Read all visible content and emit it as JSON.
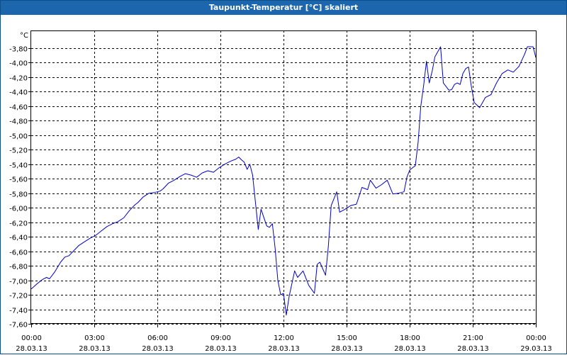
{
  "window": {
    "title": "Taupunkt-Temperatur [°C] skaliert"
  },
  "chart_data": {
    "type": "line",
    "title": "Taupunkt-Temperatur [°C] skaliert",
    "y_unit_label": "°C",
    "ylim": [
      -7.6,
      -3.6
    ],
    "y_ticks": [
      "-3,80",
      "-4,00",
      "-4,20",
      "-4,40",
      "-4,60",
      "-4,80",
      "-5,00",
      "-5,20",
      "-5,40",
      "-5,60",
      "-5,80",
      "-6,00",
      "-6,20",
      "-6,40",
      "-6,60",
      "-6,80",
      "-7,00",
      "-7,20",
      "-7,40",
      "-7,60"
    ],
    "y_tick_values": [
      -3.8,
      -4.0,
      -4.2,
      -4.4,
      -4.6,
      -4.8,
      -5.0,
      -5.2,
      -5.4,
      -5.6,
      -5.8,
      -6.0,
      -6.2,
      -6.4,
      -6.6,
      -6.8,
      -7.0,
      -7.2,
      -7.4,
      -7.6
    ],
    "xlim_hours": [
      0,
      24
    ],
    "x_ticks": [
      {
        "time": "00:00",
        "date": "28.03.13",
        "hour": 0
      },
      {
        "time": "03:00",
        "date": "28.03.13",
        "hour": 3
      },
      {
        "time": "06:00",
        "date": "28.03.13",
        "hour": 6
      },
      {
        "time": "09:00",
        "date": "28.03.13",
        "hour": 9
      },
      {
        "time": "12:00",
        "date": "28.03.13",
        "hour": 12
      },
      {
        "time": "15:00",
        "date": "28.03.13",
        "hour": 15
      },
      {
        "time": "18:00",
        "date": "28.03.13",
        "hour": 18
      },
      {
        "time": "21:00",
        "date": "28.03.13",
        "hour": 21
      },
      {
        "time": "00:00",
        "date": "29.03.13",
        "hour": 24
      }
    ],
    "grid": true,
    "series": [
      {
        "color": "#0000cc",
        "x": [
          0.0,
          0.27,
          0.53,
          0.73,
          0.87,
          1.0,
          1.13,
          1.4,
          1.6,
          1.8,
          2.0,
          2.27,
          2.53,
          2.8,
          3.07,
          3.33,
          3.6,
          3.87,
          4.13,
          4.4,
          4.67,
          4.93,
          5.07,
          5.33,
          5.6,
          5.87,
          6.13,
          6.27,
          6.53,
          6.8,
          7.07,
          7.33,
          7.6,
          7.87,
          8.13,
          8.4,
          8.67,
          8.93,
          9.2,
          9.47,
          9.73,
          9.87,
          10.0,
          10.13,
          10.27,
          10.4,
          10.53,
          10.8,
          10.93,
          11.2,
          11.33,
          11.47,
          11.6,
          11.73,
          11.87,
          12.0,
          12.13,
          12.27,
          12.53,
          12.67,
          12.93,
          13.2,
          13.47,
          13.6,
          13.73,
          14.0,
          14.13,
          14.27,
          14.53,
          14.67,
          14.93,
          15.2,
          15.47,
          15.73,
          16.0,
          16.13,
          16.4,
          16.67,
          16.93,
          17.2,
          17.47,
          17.73,
          17.87,
          18.0,
          18.13,
          18.27,
          18.4,
          18.53,
          18.67,
          18.8,
          18.93,
          19.07,
          19.2,
          19.47,
          19.6,
          19.87,
          20.0,
          20.13,
          20.27,
          20.4,
          20.53,
          20.67,
          20.8,
          20.93,
          21.07,
          21.33,
          21.6,
          21.87,
          22.13,
          22.4,
          22.67,
          22.93,
          23.2,
          23.47,
          23.6,
          23.87,
          24.0
        ],
        "y": [
          -7.12,
          -7.05,
          -6.99,
          -6.96,
          -6.98,
          -6.93,
          -6.88,
          -6.75,
          -6.68,
          -6.66,
          -6.6,
          -6.52,
          -6.47,
          -6.42,
          -6.38,
          -6.32,
          -6.26,
          -6.22,
          -6.19,
          -6.14,
          -6.04,
          -5.96,
          -5.93,
          -5.85,
          -5.8,
          -5.79,
          -5.77,
          -5.74,
          -5.66,
          -5.62,
          -5.57,
          -5.53,
          -5.55,
          -5.58,
          -5.52,
          -5.49,
          -5.51,
          -5.45,
          -5.4,
          -5.36,
          -5.33,
          -5.3,
          -5.34,
          -5.37,
          -5.47,
          -5.4,
          -5.55,
          -6.3,
          -6.02,
          -6.25,
          -6.27,
          -6.22,
          -6.55,
          -7.0,
          -7.2,
          -7.18,
          -7.48,
          -7.22,
          -6.87,
          -6.96,
          -6.87,
          -7.07,
          -7.18,
          -6.78,
          -6.75,
          -6.93,
          -6.54,
          -5.97,
          -5.78,
          -6.06,
          -6.02,
          -5.97,
          -5.95,
          -5.72,
          -5.75,
          -5.62,
          -5.73,
          -5.68,
          -5.62,
          -5.81,
          -5.8,
          -5.78,
          -5.58,
          -5.48,
          -5.45,
          -5.42,
          -5.1,
          -4.6,
          -4.3,
          -3.98,
          -4.28,
          -4.12,
          -3.92,
          -3.78,
          -4.28,
          -4.38,
          -4.37,
          -4.3,
          -4.28,
          -4.3,
          -4.15,
          -4.08,
          -4.06,
          -4.32,
          -4.55,
          -4.62,
          -4.48,
          -4.44,
          -4.28,
          -4.15,
          -4.1,
          -4.13,
          -4.05,
          -3.88,
          -3.78,
          -3.78,
          -3.93
        ]
      }
    ]
  }
}
